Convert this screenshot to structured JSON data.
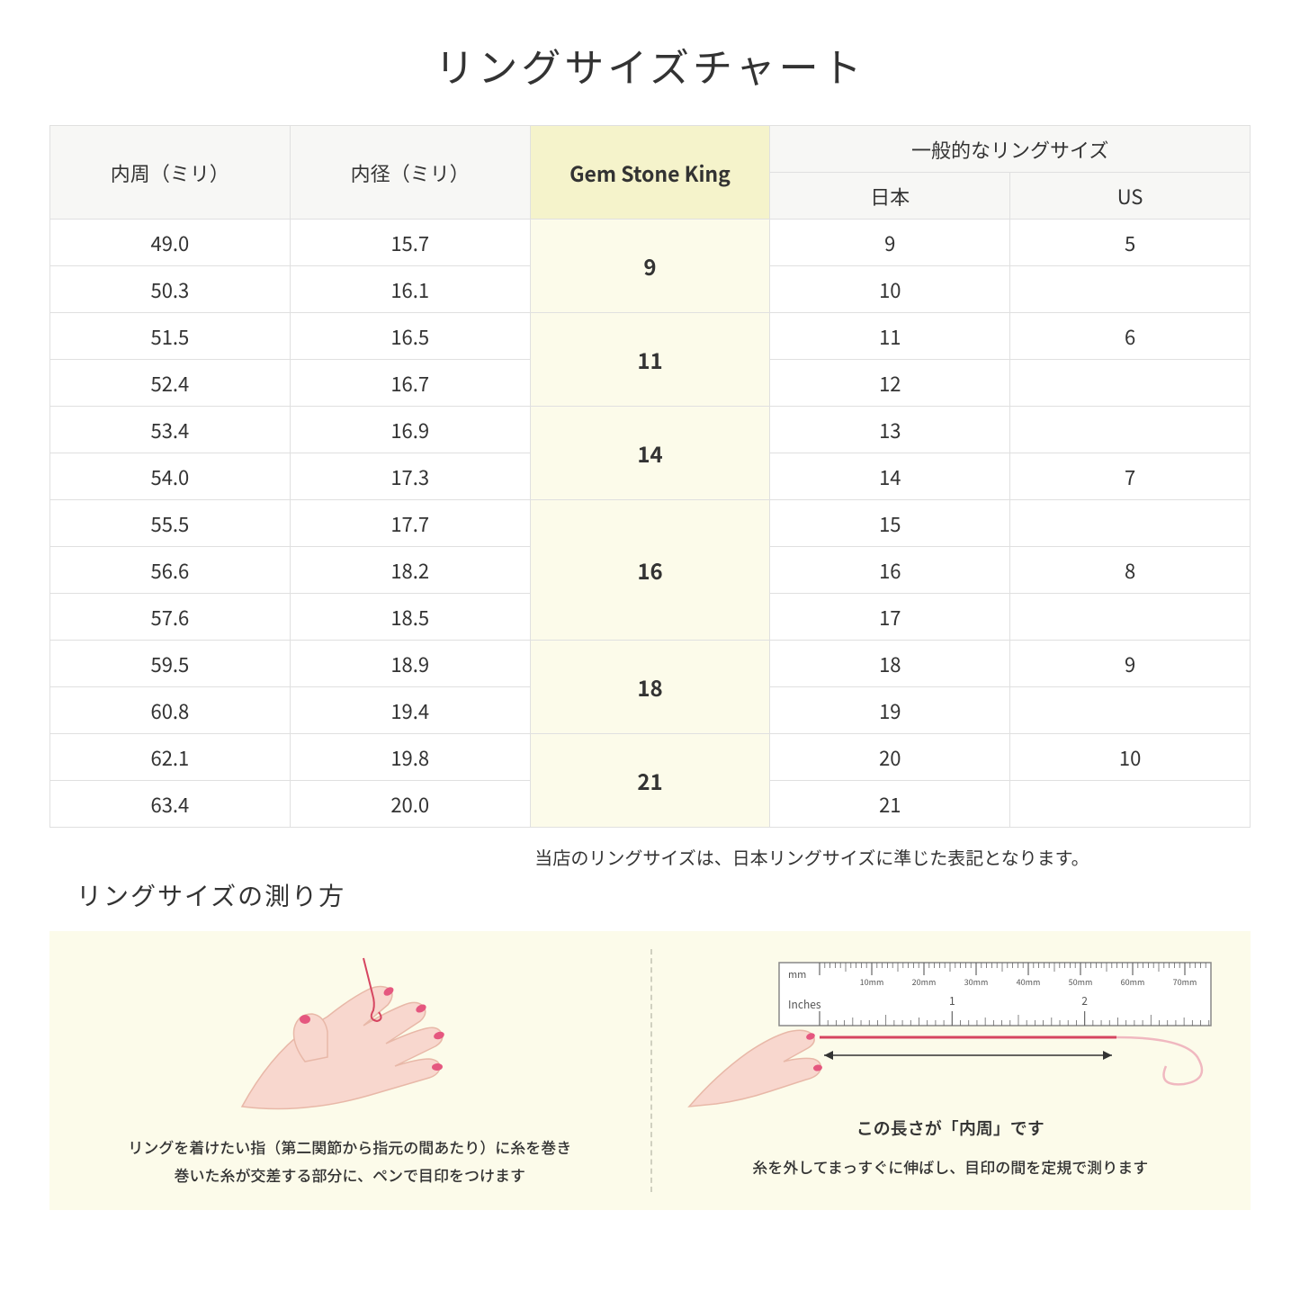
{
  "title": "リングサイズチャート",
  "headers": {
    "circumference": "内周（ミリ）",
    "diameter": "内径（ミリ）",
    "gsk": "Gem Stone King",
    "general": "一般的なリングサイズ",
    "japan": "日本",
    "us": "US"
  },
  "groups": [
    {
      "gsk": "9",
      "rows": [
        {
          "c": "49.0",
          "d": "15.7",
          "jp": "9",
          "us": "5"
        },
        {
          "c": "50.3",
          "d": "16.1",
          "jp": "10",
          "us": ""
        }
      ]
    },
    {
      "gsk": "11",
      "rows": [
        {
          "c": "51.5",
          "d": "16.5",
          "jp": "11",
          "us": "6"
        },
        {
          "c": "52.4",
          "d": "16.7",
          "jp": "12",
          "us": ""
        }
      ]
    },
    {
      "gsk": "14",
      "rows": [
        {
          "c": "53.4",
          "d": "16.9",
          "jp": "13",
          "us": ""
        },
        {
          "c": "54.0",
          "d": "17.3",
          "jp": "14",
          "us": "7"
        }
      ]
    },
    {
      "gsk": "16",
      "rows": [
        {
          "c": "55.5",
          "d": "17.7",
          "jp": "15",
          "us": ""
        },
        {
          "c": "56.6",
          "d": "18.2",
          "jp": "16",
          "us": "8"
        },
        {
          "c": "57.6",
          "d": "18.5",
          "jp": "17",
          "us": ""
        }
      ]
    },
    {
      "gsk": "18",
      "rows": [
        {
          "c": "59.5",
          "d": "18.9",
          "jp": "18",
          "us": "9"
        },
        {
          "c": "60.8",
          "d": "19.4",
          "jp": "19",
          "us": ""
        }
      ]
    },
    {
      "gsk": "21",
      "rows": [
        {
          "c": "62.1",
          "d": "19.8",
          "jp": "20",
          "us": "10"
        },
        {
          "c": "63.4",
          "d": "20.0",
          "jp": "21",
          "us": ""
        }
      ]
    }
  ],
  "note": "当店のリングサイズは、日本リングサイズに準じた表記となります。",
  "howto": {
    "title": "リングサイズの測り方",
    "left_caption_1": "リングを着けたい指（第二関節から指元の間あたり）に糸を巻き",
    "left_caption_2": "巻いた糸が交差する部分に、ペンで目印をつけます",
    "right_label": "この長さが「内周」です",
    "right_caption": "糸を外してまっすぐに伸ばし、目印の間を定規で測ります",
    "ruler": {
      "mm_label": "mm",
      "inches_label": "Inches",
      "mm_ticks": [
        "10mm",
        "20mm",
        "30mm",
        "40mm",
        "50mm",
        "60mm",
        "70mm"
      ],
      "inch_ticks": [
        "1",
        "2"
      ]
    }
  },
  "colors": {
    "header_bg": "#f7f7f5",
    "gsk_header_bg": "#f5f3cb",
    "gsk_cell_bg": "#fcfbea",
    "border": "#e0e0e0",
    "howto_bg": "#fcfbea",
    "hand_skin": "#f8d7ce",
    "hand_outline": "#e8b8a8",
    "nail": "#e5577f",
    "thread": "#d64560"
  }
}
